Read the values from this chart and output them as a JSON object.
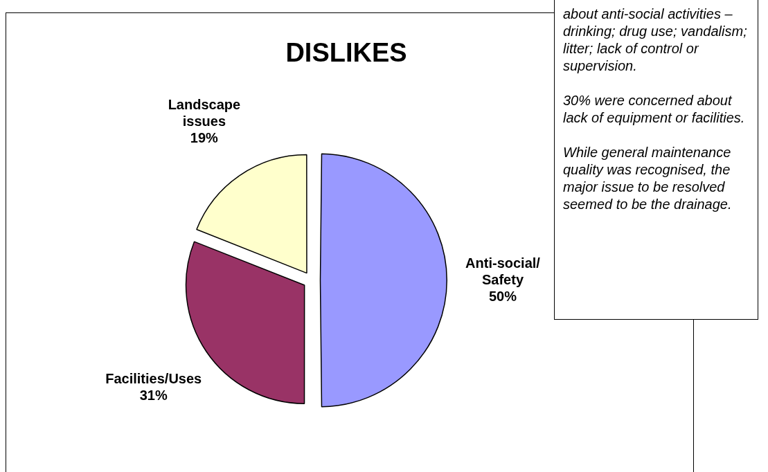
{
  "chart_data": {
    "type": "pie",
    "title": "DISLIKES",
    "categories": [
      "Anti-social/Safety",
      "Facilities/Uses",
      "Landscape issues"
    ],
    "values": [
      50,
      31,
      19
    ],
    "value_labels": [
      "50%",
      "31%",
      "19%"
    ],
    "colors": [
      "#9999ff",
      "#993366",
      "#ffffcc"
    ],
    "annotations": [
      "about anti-social activities – drinking; drug use; vandalism; litter; lack of control or supervision.",
      "30% were concerned about lack of equipment or facilities.",
      "While general maintenance quality was recognised, the major issue to be resolved seemed to be the drainage."
    ]
  }
}
